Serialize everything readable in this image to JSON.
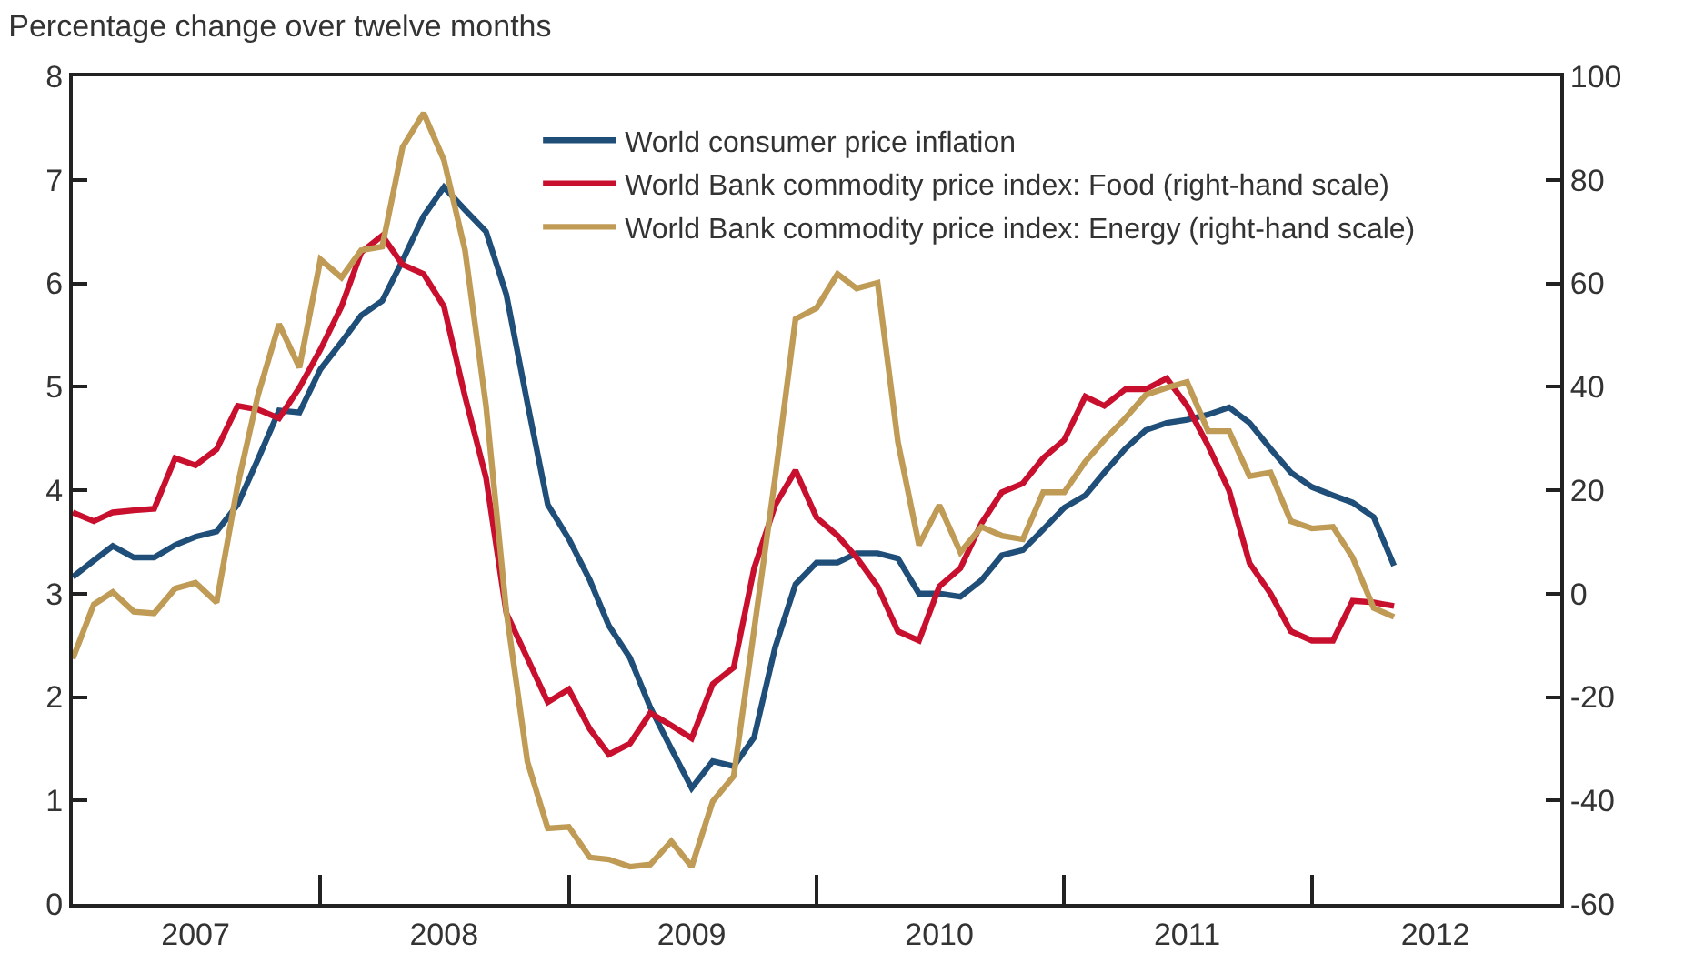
{
  "chart_data": {
    "type": "line",
    "title": "Percentage change over twelve months",
    "x": [
      "2007-01",
      "2007-02",
      "2007-03",
      "2007-04",
      "2007-05",
      "2007-06",
      "2007-07",
      "2007-08",
      "2007-09",
      "2007-10",
      "2007-11",
      "2007-12",
      "2008-01",
      "2008-02",
      "2008-03",
      "2008-04",
      "2008-05",
      "2008-06",
      "2008-07",
      "2008-08",
      "2008-09",
      "2008-10",
      "2008-11",
      "2008-12",
      "2009-01",
      "2009-02",
      "2009-03",
      "2009-04",
      "2009-05",
      "2009-06",
      "2009-07",
      "2009-08",
      "2009-09",
      "2009-10",
      "2009-11",
      "2009-12",
      "2010-01",
      "2010-02",
      "2010-03",
      "2010-04",
      "2010-05",
      "2010-06",
      "2010-07",
      "2010-08",
      "2010-09",
      "2010-10",
      "2010-11",
      "2010-12",
      "2011-01",
      "2011-02",
      "2011-03",
      "2011-04",
      "2011-05",
      "2011-06",
      "2011-07",
      "2011-08",
      "2011-09",
      "2011-10",
      "2011-11",
      "2011-12",
      "2012-01",
      "2012-02",
      "2012-03",
      "2012-04",
      "2012-05"
    ],
    "series": [
      {
        "name": "World consumer price inflation",
        "color": "#1f4e79",
        "values": [
          3.16,
          3.32,
          3.46,
          3.35,
          3.35,
          3.47,
          3.55,
          3.6,
          3.86,
          4.3,
          4.77,
          4.75,
          5.17,
          5.43,
          5.69,
          5.83,
          6.22,
          6.65,
          6.93,
          6.71,
          6.5,
          5.89,
          4.84,
          3.86,
          3.53,
          3.13,
          2.69,
          2.38,
          1.9,
          1.5,
          1.12,
          1.38,
          1.33,
          1.61,
          2.48,
          3.09,
          3.3,
          3.3,
          3.39,
          3.39,
          3.34,
          3.0,
          3.0,
          2.97,
          3.13,
          3.37,
          3.42,
          3.62,
          3.83,
          3.95,
          4.17,
          4.4,
          4.58,
          4.65,
          4.68,
          4.73,
          4.8,
          4.65,
          4.4,
          4.17,
          4.03,
          3.95,
          3.88,
          3.74,
          3.27
        ]
      },
      {
        "name": "World Bank commodity price index: Food (right-hand scale)",
        "color": "#c8102e",
        "axis": "y2",
        "values": [
          15.7,
          14.0,
          15.7,
          16.1,
          16.4,
          26.2,
          24.8,
          27.9,
          36.3,
          35.6,
          33.9,
          39.8,
          47.2,
          55.5,
          66.0,
          69.2,
          63.6,
          61.8,
          55.5,
          38.1,
          22.4,
          -3.8,
          -12.5,
          -21.0,
          -18.5,
          -26.2,
          -31.1,
          -29.0,
          -23.1,
          -25.5,
          -28.0,
          -17.5,
          -14.3,
          4.9,
          17.1,
          23.8,
          14.7,
          11.2,
          7.0,
          1.4,
          -7.3,
          -9.1,
          1.4,
          4.9,
          13.6,
          19.6,
          21.3,
          26.2,
          29.7,
          38.1,
          36.3,
          39.5,
          39.5,
          41.6,
          36.3,
          28.6,
          19.9,
          5.9,
          0.0,
          -7.3,
          -9.1,
          -9.1,
          -1.4,
          -1.7,
          -2.4
        ]
      },
      {
        "name": "World Bank commodity price index: Energy (right-hand scale)",
        "color": "#bf9b55",
        "axis": "y2",
        "values": [
          -12.6,
          -2.1,
          0.3,
          -3.5,
          -3.8,
          1.0,
          2.1,
          -1.7,
          21.0,
          38.4,
          52.1,
          43.7,
          64.6,
          61.1,
          66.4,
          67.1,
          86.3,
          92.9,
          83.8,
          66.4,
          36.3,
          -3.5,
          -32.5,
          -45.4,
          -45.1,
          -51.0,
          -51.4,
          -52.8,
          -52.4,
          -47.9,
          -52.8,
          -40.2,
          -35.3,
          -7.0,
          22.4,
          53.1,
          55.2,
          61.8,
          59.0,
          60.1,
          29.3,
          9.4,
          17.1,
          8.0,
          12.9,
          11.2,
          10.5,
          19.6,
          19.6,
          25.5,
          29.7,
          33.9,
          38.4,
          39.8,
          40.9,
          31.4,
          31.4,
          22.7,
          23.4,
          14.0,
          12.6,
          12.9,
          7.0,
          -2.8,
          -4.5
        ]
      }
    ],
    "xlim": [
      "2007-01",
      "2013-01"
    ],
    "xticks": [
      {
        "value": "2007-01",
        "label": null
      },
      {
        "value": "2007-07",
        "label": "2007"
      },
      {
        "value": "2008-01",
        "label": null
      },
      {
        "value": "2008-07",
        "label": "2008"
      },
      {
        "value": "2009-01",
        "label": null
      },
      {
        "value": "2009-07",
        "label": "2009"
      },
      {
        "value": "2010-01",
        "label": null
      },
      {
        "value": "2010-07",
        "label": "2010"
      },
      {
        "value": "2011-01",
        "label": null
      },
      {
        "value": "2011-07",
        "label": "2011"
      },
      {
        "value": "2012-01",
        "label": null
      },
      {
        "value": "2012-07",
        "label": "2012"
      },
      {
        "value": "2013-01",
        "label": null
      }
    ],
    "ylim": [
      0,
      8
    ],
    "yticks": [
      0,
      1,
      2,
      3,
      4,
      5,
      6,
      7,
      8
    ],
    "y2lim": [
      -60,
      100
    ],
    "y2ticks": [
      -60,
      -40,
      -20,
      0,
      20,
      40,
      60,
      80,
      100
    ],
    "legend": "top",
    "marker": "none",
    "line_style": "solid"
  }
}
